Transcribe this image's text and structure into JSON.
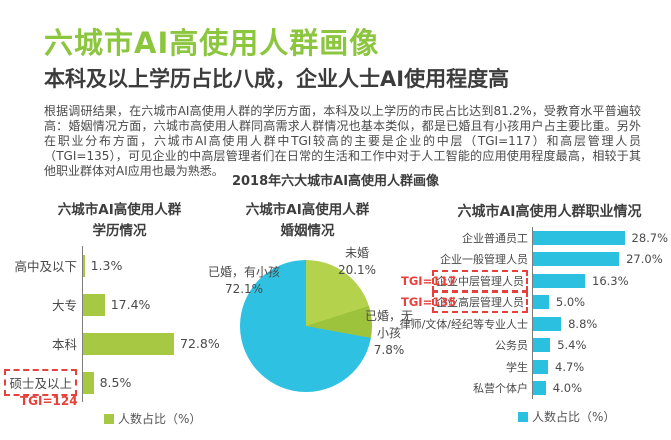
{
  "page": {
    "title": "六城市AI高使用人群画像",
    "subtitle": "本科及以上学历占比八成，企业人士AI使用程度高",
    "paragraph": "根据调研结果，在六城市AI高使用人群的学历方面，本科及以上学历的市民占比达到81.2%，受教育水平普遍较高：婚姻情况方面，六城市高使用人群同高需求人群情况也基本类似，都是已婚且有小孩用户占主要比重。另外在职业分布方面，六城市AI高使用人群中TGI较高的主要是企业的中层（TGI=117）和高层管理人员（TGI=135），可见企业的中高层管理者们在日常的生活和工作中对于人工智能的应用使用程度最高，相较于其他职业群体对AI应用也最为熟悉。",
    "figure_title": "2018年六大城市AI高使用人群画像"
  },
  "colors": {
    "title_green": "#8cc63f",
    "bar_green": "#a6c843",
    "bar_cyan": "#2bc0e0",
    "highlight_red": "#e6413c"
  },
  "chart_data": [
    {
      "type": "bar",
      "orientation": "horizontal",
      "title_lines": [
        "六城市AI高使用人群",
        "学历情况"
      ],
      "categories": [
        "高中及以下",
        "大专",
        "本科",
        "硕士及以上"
      ],
      "values": [
        1.3,
        17.4,
        72.8,
        8.5
      ],
      "unit": "%",
      "xlim": [
        0,
        80
      ],
      "bar_color": "#a6c843",
      "legend": "人数占比（%）",
      "legend_position": "bottom",
      "grid": false,
      "highlights": [
        {
          "category": "硕士及以上",
          "tgi": "TGI=124",
          "tgi_position": "below"
        }
      ]
    },
    {
      "type": "pie",
      "title_lines": [
        "六城市AI高使用人群",
        "婚姻情况"
      ],
      "start_angle_deg": 0,
      "direction": "clockwise",
      "slices": [
        {
          "label": "未婚",
          "value": 20.1,
          "color": "#b4d24c"
        },
        {
          "label": "已婚，无小孩",
          "value": 7.8,
          "color": "#9dc23c"
        },
        {
          "label": "已婚，有小孩",
          "value": 72.1,
          "color": "#2ec1e1"
        }
      ]
    },
    {
      "type": "bar",
      "orientation": "horizontal",
      "title_lines": [
        "六城市AI高使用人群职业情况"
      ],
      "categories": [
        "企业普通员工",
        "企业一般管理人员",
        "企业中层管理人员",
        "企业高层管理人员",
        "律师/文体/经纪等专业人士",
        "公务员",
        "学生",
        "私营个体户"
      ],
      "values": [
        28.7,
        27.0,
        16.3,
        5.0,
        8.8,
        5.4,
        4.7,
        4.0
      ],
      "unit": "%",
      "xlim": [
        0,
        32
      ],
      "bar_color": "#2bc0e0",
      "legend": "人数占比（%）",
      "legend_position": "bottom",
      "grid": false,
      "highlights": [
        {
          "category": "企业中层管理人员",
          "tgi": "TGI=117",
          "tgi_position": "left"
        },
        {
          "category": "企业高层管理人员",
          "tgi": "TGI=135",
          "tgi_position": "left"
        }
      ]
    }
  ]
}
